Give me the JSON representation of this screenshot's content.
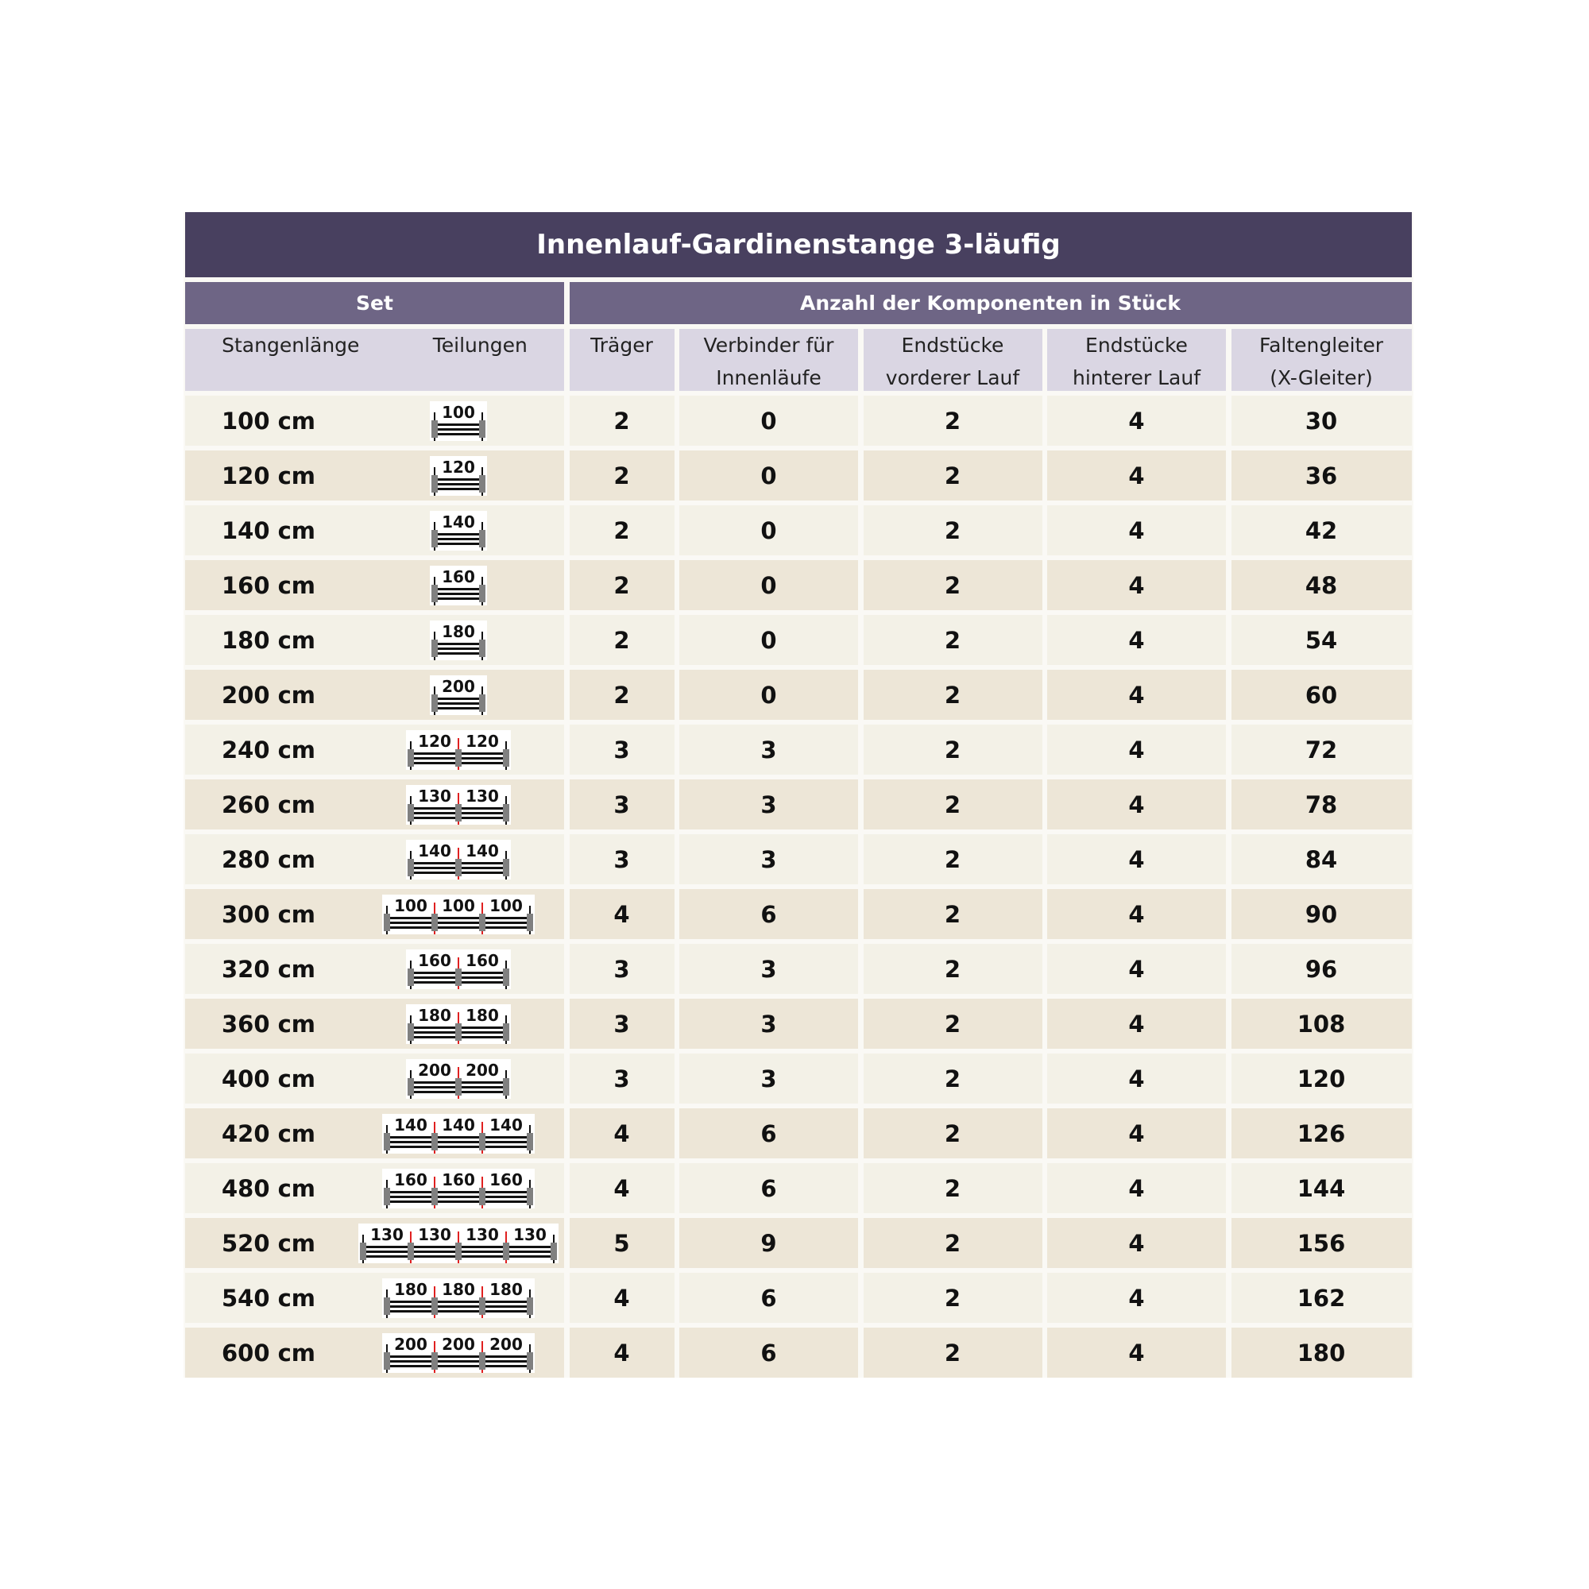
{
  "title": "Innenlauf-Gardinenstange 3-läufig",
  "group_headers": {
    "set": "Set",
    "components": "Anzahl der Komponenten in Stück"
  },
  "columns": [
    "Stangenlänge",
    "Teilungen",
    "Träger",
    "Verbinder für Innenläufe",
    "Endstücke vorderer Lauf",
    "Endstücke hinterer Lauf",
    "Faltengleiter (X-Gleiter)"
  ],
  "colors": {
    "title_bg": "#48405f",
    "group_bg": "#6e6585",
    "header_bg": "#dad6e3",
    "row_odd": "#f3f1e7",
    "row_even": "#ede6d7",
    "joint_marker": "#e02020",
    "bracket": "#808080"
  },
  "rows": [
    {
      "length": "100 cm",
      "segments": [
        "100"
      ],
      "traeger": "2",
      "verbinder": "0",
      "end_vorne": "2",
      "end_hinten": "4",
      "gleiter": "30"
    },
    {
      "length": "120 cm",
      "segments": [
        "120"
      ],
      "traeger": "2",
      "verbinder": "0",
      "end_vorne": "2",
      "end_hinten": "4",
      "gleiter": "36"
    },
    {
      "length": "140 cm",
      "segments": [
        "140"
      ],
      "traeger": "2",
      "verbinder": "0",
      "end_vorne": "2",
      "end_hinten": "4",
      "gleiter": "42"
    },
    {
      "length": "160 cm",
      "segments": [
        "160"
      ],
      "traeger": "2",
      "verbinder": "0",
      "end_vorne": "2",
      "end_hinten": "4",
      "gleiter": "48"
    },
    {
      "length": "180 cm",
      "segments": [
        "180"
      ],
      "traeger": "2",
      "verbinder": "0",
      "end_vorne": "2",
      "end_hinten": "4",
      "gleiter": "54"
    },
    {
      "length": "200 cm",
      "segments": [
        "200"
      ],
      "traeger": "2",
      "verbinder": "0",
      "end_vorne": "2",
      "end_hinten": "4",
      "gleiter": "60"
    },
    {
      "length": "240 cm",
      "segments": [
        "120",
        "120"
      ],
      "traeger": "3",
      "verbinder": "3",
      "end_vorne": "2",
      "end_hinten": "4",
      "gleiter": "72"
    },
    {
      "length": "260 cm",
      "segments": [
        "130",
        "130"
      ],
      "traeger": "3",
      "verbinder": "3",
      "end_vorne": "2",
      "end_hinten": "4",
      "gleiter": "78"
    },
    {
      "length": "280 cm",
      "segments": [
        "140",
        "140"
      ],
      "traeger": "3",
      "verbinder": "3",
      "end_vorne": "2",
      "end_hinten": "4",
      "gleiter": "84"
    },
    {
      "length": "300 cm",
      "segments": [
        "100",
        "100",
        "100"
      ],
      "traeger": "4",
      "verbinder": "6",
      "end_vorne": "2",
      "end_hinten": "4",
      "gleiter": "90"
    },
    {
      "length": "320 cm",
      "segments": [
        "160",
        "160"
      ],
      "traeger": "3",
      "verbinder": "3",
      "end_vorne": "2",
      "end_hinten": "4",
      "gleiter": "96"
    },
    {
      "length": "360 cm",
      "segments": [
        "180",
        "180"
      ],
      "traeger": "3",
      "verbinder": "3",
      "end_vorne": "2",
      "end_hinten": "4",
      "gleiter": "108"
    },
    {
      "length": "400 cm",
      "segments": [
        "200",
        "200"
      ],
      "traeger": "3",
      "verbinder": "3",
      "end_vorne": "2",
      "end_hinten": "4",
      "gleiter": "120"
    },
    {
      "length": "420 cm",
      "segments": [
        "140",
        "140",
        "140"
      ],
      "traeger": "4",
      "verbinder": "6",
      "end_vorne": "2",
      "end_hinten": "4",
      "gleiter": "126"
    },
    {
      "length": "480 cm",
      "segments": [
        "160",
        "160",
        "160"
      ],
      "traeger": "4",
      "verbinder": "6",
      "end_vorne": "2",
      "end_hinten": "4",
      "gleiter": "144"
    },
    {
      "length": "520 cm",
      "segments": [
        "130",
        "130",
        "130",
        "130"
      ],
      "traeger": "5",
      "verbinder": "9",
      "end_vorne": "2",
      "end_hinten": "4",
      "gleiter": "156"
    },
    {
      "length": "540 cm",
      "segments": [
        "180",
        "180",
        "180"
      ],
      "traeger": "4",
      "verbinder": "6",
      "end_vorne": "2",
      "end_hinten": "4",
      "gleiter": "162"
    },
    {
      "length": "600 cm",
      "segments": [
        "200",
        "200",
        "200"
      ],
      "traeger": "4",
      "verbinder": "6",
      "end_vorne": "2",
      "end_hinten": "4",
      "gleiter": "180"
    }
  ]
}
